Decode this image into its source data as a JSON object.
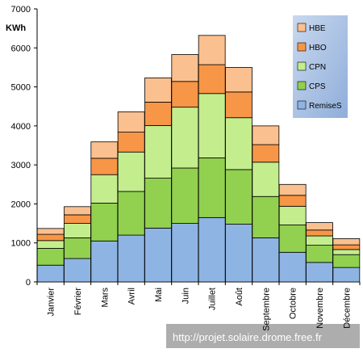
{
  "chart_data": {
    "type": "bar",
    "stacked": true,
    "ylabel": "KWh",
    "ylim": [
      0,
      7000
    ],
    "yticks": [
      0,
      1000,
      2000,
      3000,
      4000,
      5000,
      6000,
      7000
    ],
    "grid": false,
    "legend_position": "top-right",
    "categories": [
      "Janvier",
      "Février",
      "Mars",
      "Avril",
      "Mai",
      "Juin",
      "Juillet",
      "Août",
      "Septembre",
      "Octobre",
      "Novembre",
      "Décembre"
    ],
    "series": [
      {
        "name": "RemiseS",
        "color": "#8EB4E3",
        "values": [
          430,
          600,
          1050,
          1200,
          1380,
          1500,
          1650,
          1480,
          1130,
          760,
          500,
          370
        ]
      },
      {
        "name": "CPS",
        "color": "#92D050",
        "values": [
          430,
          530,
          970,
          1120,
          1280,
          1420,
          1530,
          1400,
          1060,
          700,
          440,
          330
        ]
      },
      {
        "name": "CPN",
        "color": "#C4ED8E",
        "values": [
          200,
          370,
          730,
          1010,
          1350,
          1560,
          1650,
          1330,
          880,
          480,
          240,
          130
        ]
      },
      {
        "name": "HBO",
        "color": "#F79646",
        "values": [
          160,
          220,
          420,
          510,
          600,
          660,
          740,
          660,
          450,
          280,
          150,
          120
        ]
      },
      {
        "name": "HBE",
        "color": "#FAC090",
        "values": [
          150,
          210,
          420,
          520,
          620,
          690,
          750,
          630,
          480,
          280,
          190,
          160
        ]
      }
    ]
  },
  "watermark": "http://projet.solaire.drome.free.fr"
}
